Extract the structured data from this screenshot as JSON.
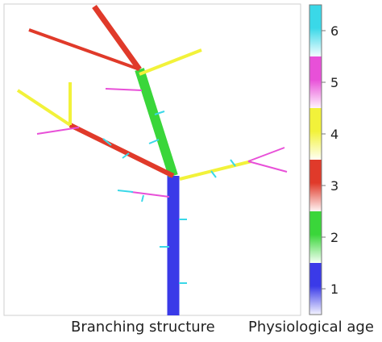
{
  "captions": {
    "branching": "Branching structure",
    "age": "Physiological age"
  },
  "colorbar": {
    "ticks": [
      "1",
      "2",
      "3",
      "4",
      "5",
      "6"
    ],
    "colors": {
      "1": "#3a3ae8",
      "2": "#3ad63a",
      "3": "#e03a2a",
      "4": "#f2f23a",
      "5": "#e850d8",
      "6": "#3ad8e8"
    }
  }
}
